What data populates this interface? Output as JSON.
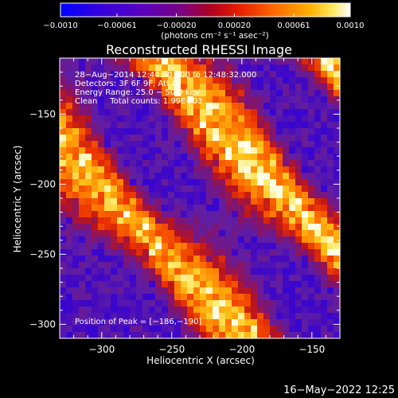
{
  "chart_data": {
    "type": "heatmap",
    "title": "Reconstructed RHESSI Image",
    "xlabel": "Heliocentric X (arcsec)",
    "ylabel": "Heliocentric Y (arcsec)",
    "xlim": [
      -330,
      -130
    ],
    "ylim": [
      -310,
      -110
    ],
    "xticks": [
      -300,
      -250,
      -200,
      -150
    ],
    "yticks": [
      -150,
      -200,
      -250,
      -300
    ],
    "colorbar": {
      "min": -0.001,
      "max": 0.001,
      "ticks": [
        "−0.0010",
        "−0.00061",
        "−0.00020",
        "0.00020",
        "0.00061",
        "0.0010"
      ],
      "tick_values": [
        -0.001,
        -0.00061,
        -0.0002,
        0.0002,
        0.00061,
        0.001
      ],
      "units": "(photons cm⁻² s⁻¹ asec⁻²)",
      "colormap": [
        "#0000ff",
        "#4a00c8",
        "#6a2aa0",
        "#8c1a6a",
        "#c81e1e",
        "#ff5000",
        "#ffa000",
        "#ffe040",
        "#ffffff"
      ]
    },
    "annotations": {
      "time": "28−Aug−2014 12:44:40.000 to 12:48:32.000",
      "detectors": "Detectors: 3F 6F 9F, Att 0",
      "energy": "Energy Range: 25.0 − 50.0 keV",
      "clean": "Clean     Total counts: 1.99E+03",
      "peak": "Position of Peak = [−186,−190]"
    },
    "peak": [
      -186,
      -190
    ],
    "bands": [
      {
        "desc": "upper-left arc",
        "intercept_offset": 120,
        "intensity": 1.0
      },
      {
        "desc": "central arc",
        "intercept_offset": 0,
        "intensity": 0.95
      },
      {
        "desc": "lower-right arc",
        "intercept_offset": -120,
        "intensity": 0.9
      }
    ],
    "footer": "16−May−2022 12:25"
  }
}
